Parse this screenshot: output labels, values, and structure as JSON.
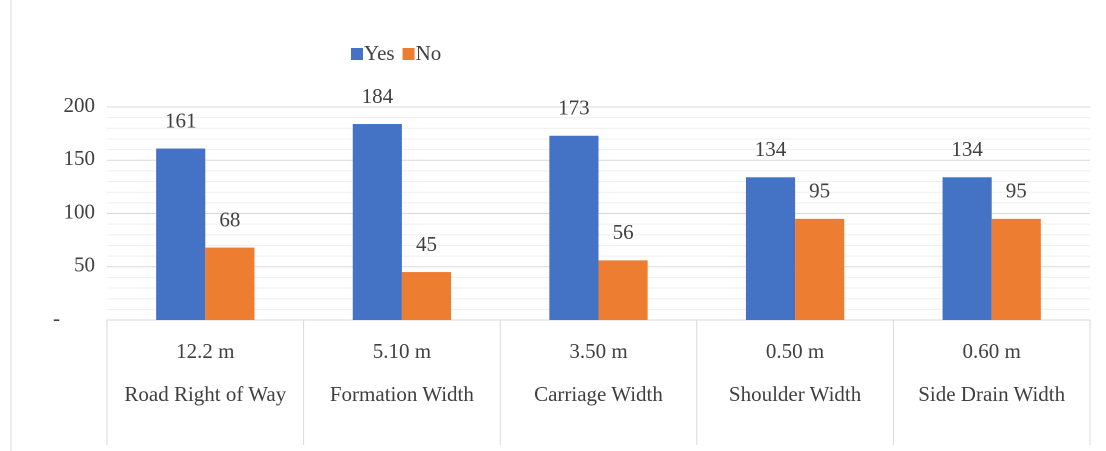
{
  "chart_data": {
    "type": "bar",
    "categories": [
      [
        "12.2 m",
        "Road Right of Way"
      ],
      [
        "5.10 m",
        "Formation Width"
      ],
      [
        "3.50 m",
        "Carriage Width"
      ],
      [
        "0.50 m",
        "Shoulder Width"
      ],
      [
        "0.60 m",
        "Side Drain Width"
      ]
    ],
    "series": [
      {
        "name": "Yes",
        "color": "#4472c4",
        "values": [
          161,
          184,
          173,
          134,
          134
        ]
      },
      {
        "name": "No",
        "color": "#ed7d31",
        "values": [
          68,
          45,
          56,
          95,
          95
        ]
      }
    ],
    "ylim": [
      0,
      200
    ],
    "yticks": [
      {
        "value": 0,
        "label": "-"
      },
      50,
      100,
      150,
      200
    ],
    "minor_yticks": [
      10,
      20,
      30,
      40,
      60,
      70,
      80,
      90,
      110,
      120,
      130,
      140,
      160,
      170,
      180,
      190
    ],
    "grid": true,
    "legend": "top"
  }
}
